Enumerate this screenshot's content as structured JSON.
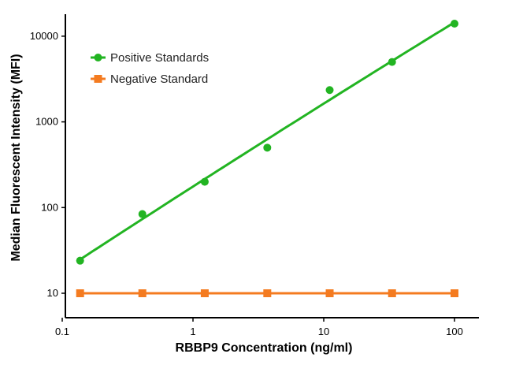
{
  "chart_data": {
    "type": "scatter",
    "xlabel": "RBBP9 Concentration (ng/ml)",
    "ylabel": "Median Fluorescent Intensity (MFI)",
    "x_scale": "log",
    "y_scale": "log",
    "xlim": [
      0.1,
      100
    ],
    "ylim": [
      4,
      15000
    ],
    "x_ticks": [
      0.1,
      1,
      10,
      100
    ],
    "x_tick_labels": [
      "0.1",
      "1",
      "10",
      "100"
    ],
    "y_ticks": [
      10,
      100,
      1000,
      10000
    ],
    "y_tick_labels": [
      "10",
      "100",
      "1000",
      "10000"
    ],
    "legend_position": "top-left",
    "grid": false,
    "series": [
      {
        "name": "Positive Standards",
        "marker": "circle",
        "color": "#22b422",
        "x": [
          0.137,
          0.41,
          1.23,
          3.7,
          11.1,
          33.3,
          100
        ],
        "y": [
          24,
          84,
          200,
          500,
          2350,
          5000,
          14000
        ],
        "fit_curve": true
      },
      {
        "name": "Negative Standard",
        "marker": "square",
        "color": "#f47b20",
        "x": [
          0.137,
          0.41,
          1.23,
          3.7,
          11.1,
          33.3,
          100
        ],
        "y": [
          10,
          10,
          10,
          10,
          10,
          10,
          10
        ],
        "connected": true
      }
    ]
  }
}
